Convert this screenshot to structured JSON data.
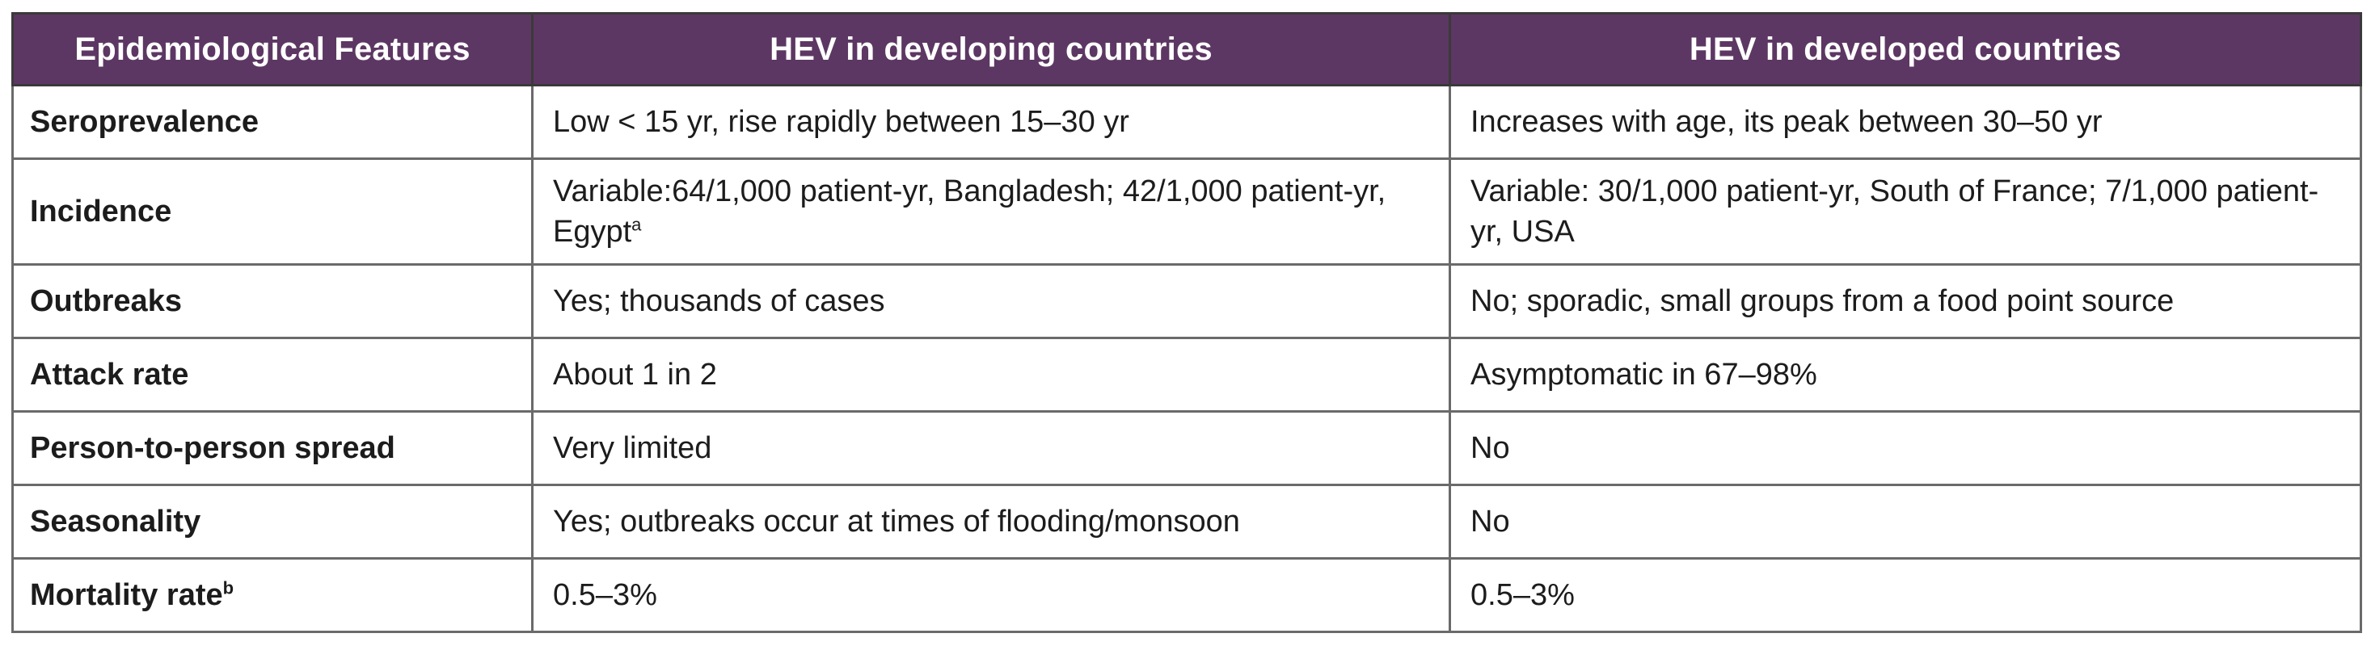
{
  "table": {
    "headers": [
      "Epidemiological Features",
      "HEV in developing countries",
      "HEV in developed countries"
    ],
    "rows": [
      {
        "feature": "Seroprevalence",
        "feature_sup": "",
        "developing": "Low < 15 yr, rise rapidly between 15–30 yr",
        "developing_sup": "",
        "developed": "Increases with age, its peak between 30–50 yr"
      },
      {
        "feature": "Incidence",
        "feature_sup": "",
        "developing": "Variable:64/1,000 patient-yr, Bangladesh; 42/1,000 patient-yr, Egypt",
        "developing_sup": "a",
        "developed": "Variable: 30/1,000 patient-yr, South of France; 7/1,000 patient-yr, USA"
      },
      {
        "feature": "Outbreaks",
        "feature_sup": "",
        "developing": "Yes; thousands of cases",
        "developing_sup": "",
        "developed": "No; sporadic, small groups from a food point source"
      },
      {
        "feature": "Attack rate",
        "feature_sup": "",
        "developing": "About 1 in 2",
        "developing_sup": "",
        "developed": "Asymptomatic in 67–98%"
      },
      {
        "feature": "Person-to-person spread",
        "feature_sup": "",
        "developing": "Very limited",
        "developing_sup": "",
        "developed": "No"
      },
      {
        "feature": "Seasonality",
        "feature_sup": "",
        "developing": "Yes; outbreaks occur at times of flooding/monsoon",
        "developing_sup": "",
        "developed": "No"
      },
      {
        "feature": "Mortality rate",
        "feature_sup": "b",
        "developing": "0.5–3%",
        "developing_sup": "",
        "developed": "0.5–3%"
      }
    ]
  },
  "colors": {
    "header_bg": "#5d3763",
    "header_text": "#ffffff",
    "border": "#3a3a3a"
  }
}
